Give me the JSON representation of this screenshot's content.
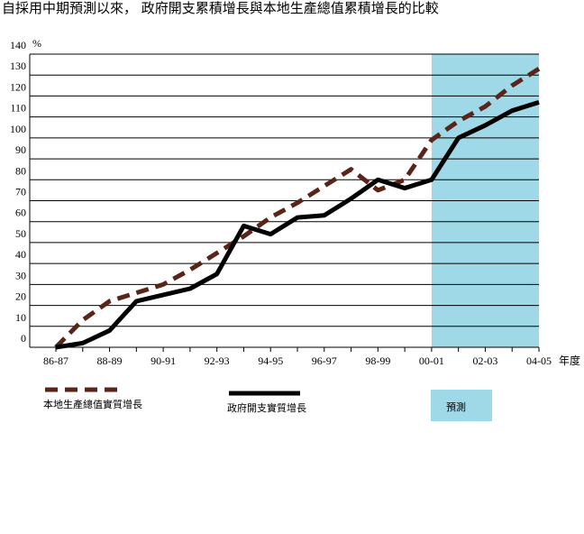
{
  "chart_data": {
    "type": "line",
    "title": "自採用中期預測以來， 政府開支累積增長與本地生產總值累積增長的比較",
    "y_unit": "%",
    "x_label": "年度",
    "categories": [
      "86-87",
      null,
      "88-89",
      null,
      "90-91",
      null,
      "92-93",
      null,
      "94-95",
      null,
      "96-97",
      null,
      "98-99",
      null,
      "00-01",
      null,
      "02-03",
      null,
      "04-05"
    ],
    "series": [
      {
        "name": "本地生產總值實質增長",
        "color": "#5a2418",
        "dashed": true,
        "values": [
          0,
          13,
          22,
          26,
          30,
          37,
          45,
          53,
          62,
          69,
          77,
          85,
          75,
          80,
          99,
          108,
          115,
          125,
          133
        ]
      },
      {
        "name": "政府開支實質增長",
        "color": "#000000",
        "dashed": false,
        "values": [
          0,
          2,
          8,
          22,
          25,
          28,
          35,
          58,
          54,
          62,
          63,
          71,
          80,
          76,
          80,
          100,
          106,
          113,
          117
        ]
      }
    ],
    "shaded_region": {
      "label": "預測",
      "color": "#9fd8e6",
      "from": "00-01",
      "to": "04-05"
    },
    "ylim": [
      0,
      140
    ],
    "yticks": [
      0,
      10,
      20,
      30,
      40,
      50,
      60,
      70,
      80,
      90,
      100,
      110,
      120,
      130,
      140
    ],
    "grid": true
  }
}
